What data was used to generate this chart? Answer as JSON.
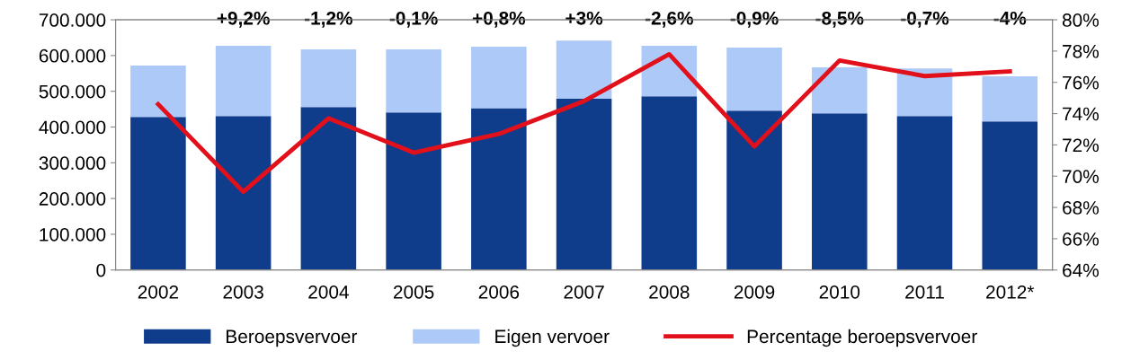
{
  "chart_data": {
    "type": "bar",
    "stacked": true,
    "categories": [
      "2002",
      "2003",
      "2004",
      "2005",
      "2006",
      "2007",
      "2008",
      "2009",
      "2010",
      "2011",
      "2012*"
    ],
    "series": [
      {
        "name": "Beroepsvervoer",
        "color": "#0f3d8c",
        "values": [
          428000,
          431000,
          456000,
          441000,
          453000,
          479000,
          486000,
          446000,
          438000,
          431000,
          416000
        ]
      },
      {
        "name": "Eigen vervoer",
        "color": "#adc9f7",
        "values": [
          144000,
          196000,
          161000,
          176000,
          172000,
          163000,
          141000,
          176000,
          129000,
          133000,
          126000
        ]
      },
      {
        "name": "Percentage beroepsvervoer",
        "type": "line",
        "axis": "y2",
        "color": "#e2101a",
        "values": [
          74.6,
          69.0,
          73.7,
          71.5,
          72.7,
          74.8,
          77.8,
          71.9,
          77.4,
          76.4,
          76.7
        ]
      }
    ],
    "ylim": [
      0,
      700000
    ],
    "yticks": [
      {
        "value": 0,
        "label": "0"
      },
      {
        "value": 100000,
        "label": "100.000"
      },
      {
        "value": 200000,
        "label": "200.000"
      },
      {
        "value": 300000,
        "label": "300.000"
      },
      {
        "value": 400000,
        "label": "400.000"
      },
      {
        "value": 500000,
        "label": "500.000"
      },
      {
        "value": 600000,
        "label": "600.000"
      },
      {
        "value": 700000,
        "label": "700.000"
      }
    ],
    "y2lim": [
      64,
      80
    ],
    "y2ticks": [
      {
        "value": 64,
        "label": "64%"
      },
      {
        "value": 66,
        "label": "66%"
      },
      {
        "value": 68,
        "label": "68%"
      },
      {
        "value": 70,
        "label": "70%"
      },
      {
        "value": 72,
        "label": "72%"
      },
      {
        "value": 74,
        "label": "74%"
      },
      {
        "value": 76,
        "label": "76%"
      },
      {
        "value": 78,
        "label": "78%"
      },
      {
        "value": 80,
        "label": "80%"
      }
    ],
    "annotations": [
      "+9,2%",
      "-1,2%",
      "-0,1%",
      "+0,8%",
      "+3%",
      "-2,6%",
      "-0,9%",
      "-8,5%",
      "-0,7%",
      "-4%"
    ],
    "grid": false,
    "legend": "bottom",
    "marker": "none",
    "line_style": "solid"
  }
}
